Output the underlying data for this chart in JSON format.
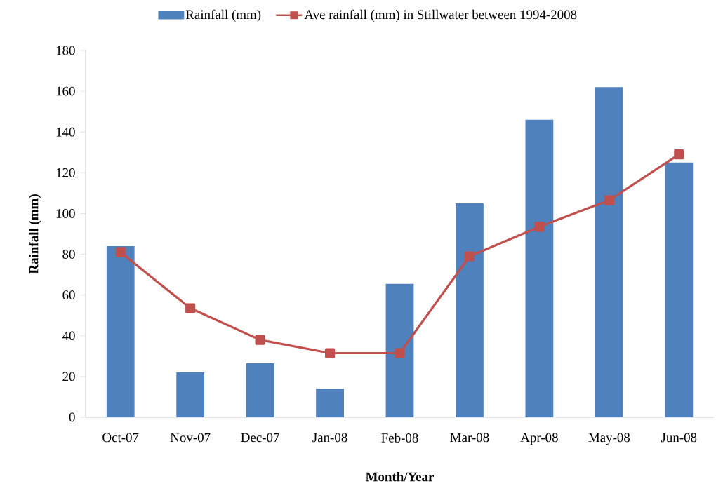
{
  "chart_data": {
    "type": "bar",
    "xlabel": "Month/Year",
    "ylabel": "Rainfall (mm)",
    "categories": [
      "Oct-07",
      "Nov-07",
      "Dec-07",
      "Jan-08",
      "Feb-08",
      "Mar-08",
      "Apr-08",
      "May-08",
      "Jun-08"
    ],
    "series": [
      {
        "name": "Rainfall (mm)",
        "color": "#4f81bd",
        "values": [
          84,
          22,
          26.5,
          14,
          65.5,
          105,
          146,
          162,
          125
        ]
      },
      {
        "name": "Ave rainfall (mm) in Stillwater between 1994-2008",
        "type": "line",
        "color": "#c0504d",
        "marker": "square",
        "values": [
          81,
          53.5,
          38,
          31.5,
          31.5,
          79,
          93.5,
          106.5,
          129
        ]
      }
    ],
    "ylim": [
      0,
      180
    ],
    "yticks": [
      0,
      20,
      40,
      60,
      80,
      100,
      120,
      140,
      160,
      180
    ],
    "legend": "top"
  }
}
